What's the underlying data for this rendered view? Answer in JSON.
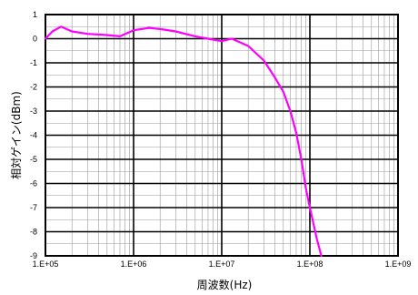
{
  "chart_data": {
    "type": "line",
    "title": "",
    "xlabel": "周波数(Hz)",
    "ylabel": "相対ゲイン(dBm)",
    "x_scale": "log",
    "xlim": [
      100000,
      1000000000
    ],
    "ylim": [
      -9,
      1
    ],
    "x_ticks": [
      "1.E+05",
      "1.E+06",
      "1.E+07",
      "1.E+08",
      "1.E+09"
    ],
    "y_ticks": [
      "1",
      "0",
      "-1",
      "-2",
      "-3",
      "-4",
      "-5",
      "-6",
      "-7",
      "-8",
      "-9"
    ],
    "grid": true,
    "series": [
      {
        "color": "#ff00ff",
        "x": [
          100000,
          120000,
          150000,
          200000,
          300000,
          500000,
          700000,
          1000000,
          1500000,
          2000000,
          3000000,
          5000000,
          7000000,
          10000000,
          13000000,
          20000000,
          30000000,
          40000000,
          50000000,
          60000000,
          70000000,
          80000000,
          90000000,
          100000000,
          120000000,
          135000000
        ],
        "y": [
          0.0,
          0.3,
          0.5,
          0.3,
          0.2,
          0.15,
          0.1,
          0.35,
          0.45,
          0.4,
          0.3,
          0.1,
          0.0,
          -0.1,
          0.0,
          -0.3,
          -0.9,
          -1.6,
          -2.2,
          -3.0,
          -3.9,
          -5.0,
          -6.2,
          -7.0,
          -8.3,
          -9.0
        ]
      }
    ]
  }
}
